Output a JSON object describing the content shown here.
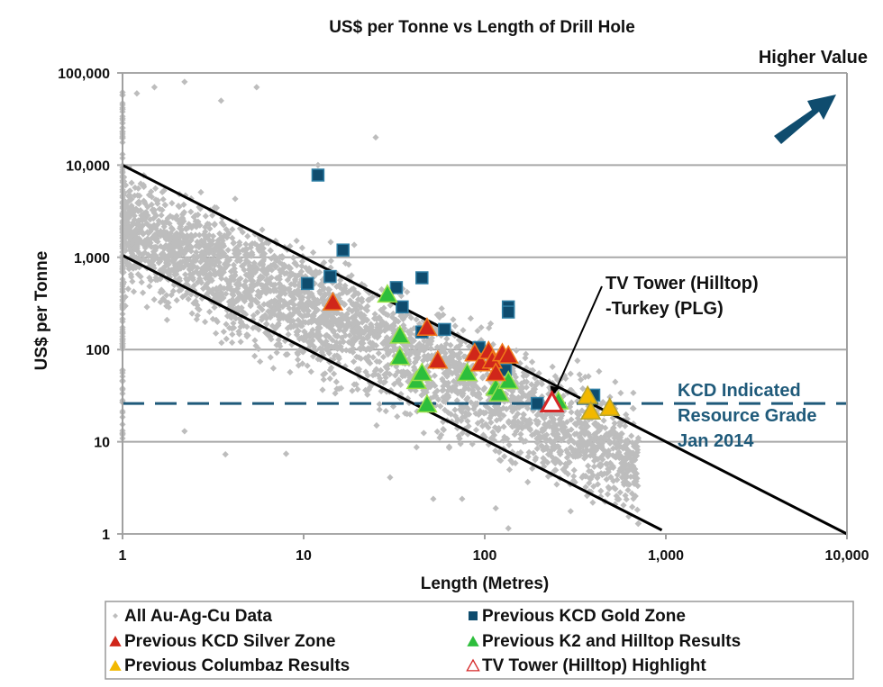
{
  "chart_data": {
    "type": "scatter",
    "title": "US$ per Tonne vs Length of Drill Hole",
    "xlabel": "Length (Metres)",
    "ylabel": "US$ per Tonne",
    "xscale": "log",
    "yscale": "log",
    "xlim": [
      1,
      10000
    ],
    "ylim": [
      1,
      100000
    ],
    "x_ticks": [
      "1",
      "10",
      "100",
      "1,000",
      "10,000"
    ],
    "y_ticks": [
      "1",
      "10",
      "100",
      "1,000",
      "10,000",
      "100,000"
    ],
    "grid": "horizontal",
    "legend_position": "bottom",
    "colors": {
      "background_data": "#bdbdbd",
      "gold_zone": "#0f4c6e",
      "silver_zone": "#d0261a",
      "k2_hilltop": "#2dbe3c",
      "columbaz": "#f2b800",
      "tv_tower": "#d62828",
      "reference_line": "#000000",
      "resource_line": "#1f5a7a",
      "arrow": "#0f4c6e"
    },
    "series": [
      {
        "name": "All Au-Ag-Cu Data",
        "marker": "diamond",
        "note": "thousands of background points forming a band between the two diagonal reference lines (x 1 to ~800 m, y ~2 to ~80,000 US$/t)",
        "values_sample": [
          [
            1.2,
            60000
          ],
          [
            1.5,
            70000
          ],
          [
            2.2,
            80000
          ],
          [
            5.5,
            70000
          ],
          [
            3.5,
            50000
          ],
          [
            12,
            10000
          ],
          [
            25,
            20000
          ],
          [
            2.2,
            13
          ],
          [
            3.7,
            7.3
          ],
          [
            8,
            7.4
          ],
          [
            30,
            4.1
          ],
          [
            52,
            2.4
          ],
          [
            75,
            2.4
          ],
          [
            115,
            1.9
          ],
          [
            135,
            1.15
          ]
        ]
      },
      {
        "name": "Previous KCD Gold Zone",
        "marker": "square",
        "values": [
          [
            12,
            7800
          ],
          [
            16.5,
            1200
          ],
          [
            14,
            620
          ],
          [
            10.5,
            520
          ],
          [
            32.5,
            470
          ],
          [
            45,
            600
          ],
          [
            35,
            290
          ],
          [
            60,
            165
          ],
          [
            45,
            155
          ],
          [
            93,
            105
          ],
          [
            135,
            290
          ],
          [
            135,
            255
          ],
          [
            130,
            60
          ],
          [
            195,
            26
          ],
          [
            400,
            32
          ]
        ]
      },
      {
        "name": "Previous KCD Silver Zone",
        "marker": "triangle",
        "values": [
          [
            14.5,
            320
          ],
          [
            48,
            170
          ],
          [
            55,
            75
          ],
          [
            88,
            90
          ],
          [
            95,
            70
          ],
          [
            105,
            95
          ],
          [
            110,
            75
          ],
          [
            115,
            55
          ],
          [
            125,
            90
          ],
          [
            135,
            85
          ]
        ]
      },
      {
        "name": "Previous K2 and Hilltop Results",
        "marker": "triangle",
        "values": [
          [
            29,
            390
          ],
          [
            34,
            140
          ],
          [
            34,
            82
          ],
          [
            42,
            45
          ],
          [
            45,
            55
          ],
          [
            48,
            25
          ],
          [
            80,
            55
          ],
          [
            115,
            38
          ],
          [
            120,
            33
          ],
          [
            135,
            45
          ],
          [
            255,
            27
          ]
        ]
      },
      {
        "name": "Previous Columbaz Results",
        "marker": "triangle",
        "values": [
          [
            370,
            31
          ],
          [
            385,
            21
          ],
          [
            490,
            23
          ]
        ]
      },
      {
        "name": "TV Tower (Hilltop) Highlight",
        "marker": "triangle-open",
        "values": [
          [
            235,
            26
          ]
        ]
      }
    ],
    "reference_lines": [
      {
        "name": "upper-diagonal",
        "from": [
          1,
          10000
        ],
        "to": [
          10000,
          1
        ]
      },
      {
        "name": "lower-diagonal",
        "from": [
          1,
          1050
        ],
        "to": [
          950,
          1.1
        ]
      },
      {
        "name": "KCD Indicated Resource Grade",
        "style": "dashed",
        "y": 26
      }
    ],
    "annotations": {
      "tv_tower_label": [
        "TV Tower  (Hilltop)",
        "-Turkey (PLG)"
      ],
      "tv_tower_points_to": [
        235,
        26
      ],
      "resource_label": [
        "KCD Indicated",
        "Resource Grade",
        "Jan 2014"
      ],
      "higher_value_label": "Higher Value"
    },
    "legend": [
      {
        "label": "All Au-Ag-Cu Data",
        "marker": "diamond",
        "color": "#bdbdbd"
      },
      {
        "label": "Previous KCD Gold Zone",
        "marker": "square",
        "color": "#0f4c6e"
      },
      {
        "label": "Previous KCD Silver Zone",
        "marker": "triangle",
        "color": "#d0261a"
      },
      {
        "label": "Previous K2 and Hilltop Results",
        "marker": "triangle",
        "color": "#2dbe3c"
      },
      {
        "label": "Previous Columbaz Results",
        "marker": "triangle",
        "color": "#f2b800"
      },
      {
        "label": "TV Tower (Hilltop) Highlight",
        "marker": "triangle-open",
        "color": "#d62828"
      }
    ]
  }
}
